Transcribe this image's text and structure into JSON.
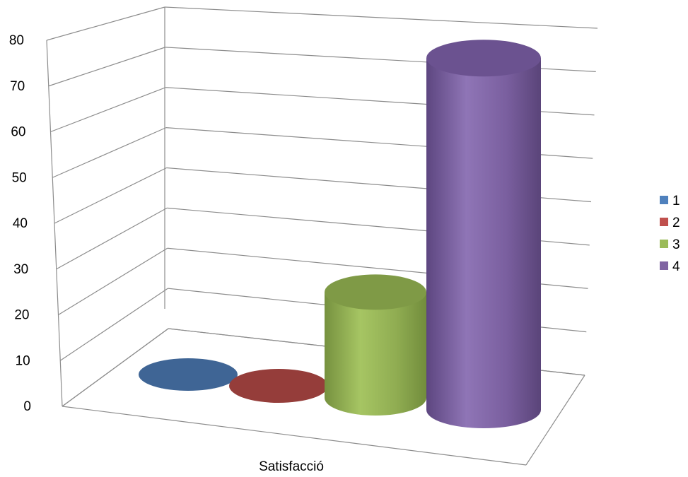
{
  "chart_data": {
    "type": "bar",
    "style": "3d-cylinder",
    "categories": [
      "Satisfacció"
    ],
    "series": [
      {
        "name": "1",
        "values": [
          0
        ],
        "color": "#4F81BD"
      },
      {
        "name": "2",
        "values": [
          0
        ],
        "color": "#C0504D"
      },
      {
        "name": "3",
        "values": [
          22
        ],
        "color": "#9BBB59"
      },
      {
        "name": "4",
        "values": [
          76
        ],
        "color": "#8064A2"
      }
    ],
    "y_ticks": [
      "0",
      "10",
      "20",
      "30",
      "40",
      "50",
      "60",
      "70",
      "80"
    ],
    "ylim": [
      0,
      80
    ],
    "grid": true,
    "legend": "right"
  }
}
